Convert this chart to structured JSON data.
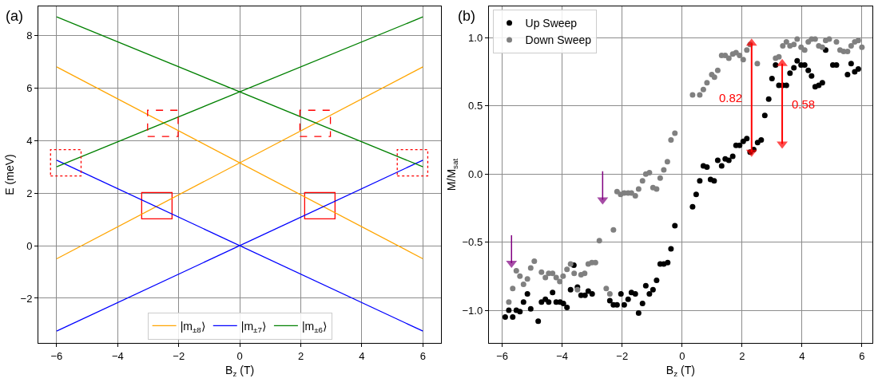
{
  "chart_data": [
    {
      "type": "line",
      "title": "(a)",
      "xlabel": "B$_{z}$ (T)",
      "ylabel": "E (meV)",
      "xlim": [
        -6.6,
        6.6
      ],
      "ylim": [
        -3.7,
        9.1
      ],
      "xticks": [
        {
          "value": -6,
          "label": "−6"
        },
        {
          "value": -4,
          "label": "−4"
        },
        {
          "value": -2,
          "label": "−2"
        },
        0,
        2,
        4,
        6
      ],
      "yticks": [
        {
          "value": -2,
          "label": "−2"
        },
        0,
        2,
        4,
        6,
        8
      ],
      "grid": true,
      "legend": "bottom",
      "series": [
        {
          "name": "|m$_{±8}$⟩",
          "color": "#ffa500",
          "x": [
            -6,
            6
          ],
          "values": [
            -0.5,
            6.8
          ]
        },
        {
          "color": "#ffa500",
          "x": [
            -6,
            6
          ],
          "values": [
            6.8,
            -0.5
          ]
        },
        {
          "name": "|m$_{±7}$⟩",
          "color": "#0000ff",
          "x": [
            -6,
            6
          ],
          "values": [
            3.25,
            -3.25
          ]
        },
        {
          "color": "#0000ff",
          "x": [
            -6,
            6
          ],
          "values": [
            -3.25,
            3.25
          ]
        },
        {
          "name": "|m$_{±6}$⟩",
          "color": "#008000",
          "x": [
            -6,
            6
          ],
          "values": [
            3.0,
            8.7
          ]
        },
        {
          "color": "#008000",
          "x": [
            -6,
            6
          ],
          "values": [
            8.7,
            3.0
          ]
        },
        {
          "type": "bar",
          "color": "#ff0000",
          "line_style": [
            "dotted",
            "solid",
            "dashed",
            "dashed",
            "solid",
            "dotted"
          ],
          "x": [
            -5.7,
            -2.7,
            -2.52,
            2.47,
            2.65,
            5.66
          ],
          "base": [
            2.65,
            1.0,
            4.15,
            4.15,
            1.0,
            2.65
          ],
          "values": [
            1.0,
            1.0,
            1.0,
            1.0,
            1.0,
            1.0
          ]
        }
      ]
    },
    {
      "type": "scatter",
      "title": "(b)",
      "xlabel": "B$_{z}$ (T)",
      "ylabel": "M/M$_{sat}$",
      "xlim": [
        -6.45,
        6.35
      ],
      "ylim": [
        -1.24,
        1.23
      ],
      "xticks": [
        {
          "value": -6,
          "label": "−6"
        },
        {
          "value": -4,
          "label": "−4"
        },
        {
          "value": -2,
          "label": "−2"
        },
        0,
        2,
        4,
        6
      ],
      "yticks": [
        {
          "value": -1,
          "label": "−1.0"
        },
        {
          "value": -0.5,
          "label": "−0.5"
        },
        {
          "value": 0,
          "label": "0.0"
        },
        {
          "value": 0.5,
          "label": "0.5"
        },
        {
          "value": 1,
          "label": "1.0"
        }
      ],
      "grid": true,
      "legend": "top left",
      "marker": "circle",
      "series": [
        {
          "name": "Up Sweep",
          "color": "#000000",
          "x": [
            -5.9,
            -5.78,
            -5.65,
            -5.53,
            -5.41,
            -5.29,
            -5.16,
            -5.05,
            -4.8,
            -4.69,
            -4.56,
            -4.45,
            -4.32,
            -4.2,
            -4.07,
            -3.96,
            -3.84,
            -3.72,
            -3.61,
            -3.49,
            -3.37,
            -3.24,
            -3.13,
            -3.0,
            -2.41,
            -2.29,
            -2.17,
            -2.04,
            -1.93,
            -1.8,
            -1.69,
            -1.56,
            -1.45,
            -1.32,
            -1.21,
            -1.09,
            -0.97,
            -0.85,
            -0.73,
            -0.61,
            -0.48,
            -0.37,
            -0.24,
            0.35,
            0.47,
            0.59,
            0.71,
            0.83,
            0.95,
            1.07,
            1.19,
            1.32,
            1.44,
            1.56,
            1.69,
            1.8,
            1.92,
            2.04,
            2.16,
            2.27,
            2.39,
            2.52,
            2.64,
            2.76,
            2.89,
            3.0,
            3.12,
            3.23,
            3.36,
            3.48,
            3.6,
            3.73,
            3.84,
            3.97,
            4.09,
            4.21,
            4.32,
            4.44,
            4.56,
            4.68,
            4.79,
            5.03,
            5.15,
            5.52,
            5.64,
            5.76,
            5.88
          ],
          "values": [
            -1.05,
            -1.0,
            -1.05,
            -1.0,
            -1.01,
            -0.94,
            -0.88,
            -0.99,
            -1.08,
            -0.94,
            -0.92,
            -0.94,
            -0.87,
            -0.94,
            -0.94,
            -0.95,
            -0.98,
            -0.85,
            -0.67,
            -0.83,
            -0.89,
            -0.89,
            -0.86,
            -0.88,
            -0.93,
            -0.96,
            -0.96,
            -0.88,
            -0.96,
            -0.92,
            -0.87,
            -0.88,
            -1.02,
            -0.95,
            -0.82,
            -0.88,
            -0.85,
            -0.78,
            -0.66,
            -0.66,
            -0.65,
            -0.55,
            -0.38,
            -0.24,
            -0.15,
            -0.05,
            0.06,
            0.05,
            -0.04,
            -0.05,
            0.1,
            0.06,
            0.11,
            0.1,
            0.13,
            0.21,
            0.21,
            0.24,
            0.26,
            0.16,
            0.18,
            0.23,
            0.25,
            0.43,
            0.55,
            0.7,
            0.8,
            0.65,
            0.65,
            0.65,
            0.74,
            0.78,
            0.83,
            0.8,
            0.8,
            0.76,
            0.72,
            0.64,
            0.65,
            0.67,
            0.91,
            0.8,
            0.8,
            0.73,
            0.81,
            0.75,
            0.77
          ]
        },
        {
          "name": "Down Sweep",
          "color": "#808080",
          "x": [
            -5.78,
            -5.65,
            -5.53,
            -5.41,
            -5.29,
            -5.16,
            -5.05,
            -4.93,
            -4.69,
            -4.56,
            -4.45,
            -4.32,
            -4.2,
            -4.08,
            -3.97,
            -3.84,
            -3.72,
            -3.6,
            -3.49,
            -3.37,
            -3.25,
            -3.13,
            -3.01,
            -2.89,
            -2.76,
            -2.53,
            -2.41,
            -2.29,
            -2.17,
            -2.05,
            -1.93,
            -1.8,
            -1.69,
            -1.56,
            -1.45,
            -1.32,
            -1.21,
            -1.09,
            -0.97,
            -0.85,
            -0.73,
            -0.61,
            -0.49,
            -0.37,
            -0.24,
            0.35,
            0.59,
            0.71,
            0.83,
            0.99,
            1.08,
            1.19,
            1.32,
            1.44,
            1.56,
            1.69,
            1.8,
            1.92,
            2.04,
            2.16,
            2.27,
            2.51,
            3.12,
            3.23,
            3.36,
            3.48,
            3.6,
            3.73,
            3.84,
            3.97,
            4.09,
            4.21,
            4.32,
            4.44,
            4.56,
            4.68,
            4.79,
            4.91,
            5.15,
            5.27,
            5.39,
            5.52,
            5.64,
            5.76,
            5.88,
            6.0
          ],
          "values": [
            -0.94,
            -0.84,
            -0.71,
            -0.75,
            -0.81,
            -0.77,
            -0.69,
            -0.64,
            -0.72,
            -0.76,
            -0.73,
            -0.73,
            -0.76,
            -0.79,
            -0.75,
            -0.7,
            -0.66,
            -0.73,
            -0.85,
            -0.74,
            -0.73,
            -0.66,
            -0.65,
            -0.65,
            -0.49,
            -0.84,
            -0.88,
            -0.41,
            -0.13,
            -0.15,
            -0.14,
            -0.14,
            -0.14,
            -0.16,
            -0.11,
            -0.05,
            0.0,
            0.01,
            -0.1,
            -0.11,
            -0.03,
            0.03,
            0.09,
            0.25,
            0.3,
            0.58,
            0.58,
            0.62,
            0.67,
            0.73,
            0.71,
            0.76,
            0.87,
            0.87,
            0.85,
            0.88,
            0.89,
            0.87,
            0.84,
            0.91,
            0.95,
            0.81,
            0.85,
            0.86,
            0.94,
            0.97,
            0.94,
            0.95,
            0.99,
            0.93,
            0.91,
            0.97,
            0.99,
            0.99,
            0.94,
            0.93,
            0.98,
            0.99,
            0.97,
            0.91,
            0.9,
            0.9,
            0.94,
            0.97,
            0.98,
            0.93
          ]
        },
        {
          "type": "line",
          "marker": "triangle",
          "name": "0.82",
          "color": "#ff0000",
          "x": [
            2.32,
            2.32
          ],
          "values": [
            0.16,
            0.96
          ]
        },
        {
          "type": "line",
          "marker": "triangle",
          "name": "0.58",
          "color": "#ff0000",
          "x": [
            3.34,
            3.34
          ],
          "values": [
            0.22,
            0.81
          ]
        },
        {
          "type": "line",
          "marker": "triangle",
          "color": "#800080",
          "x": [
            -5.69,
            -5.69
          ],
          "values": [
            -0.45,
            -0.655
          ]
        },
        {
          "type": "line",
          "marker": "triangle",
          "color": "#800080",
          "x": [
            -2.65,
            -2.65
          ],
          "values": [
            0.02,
            -0.19
          ]
        }
      ]
    }
  ]
}
